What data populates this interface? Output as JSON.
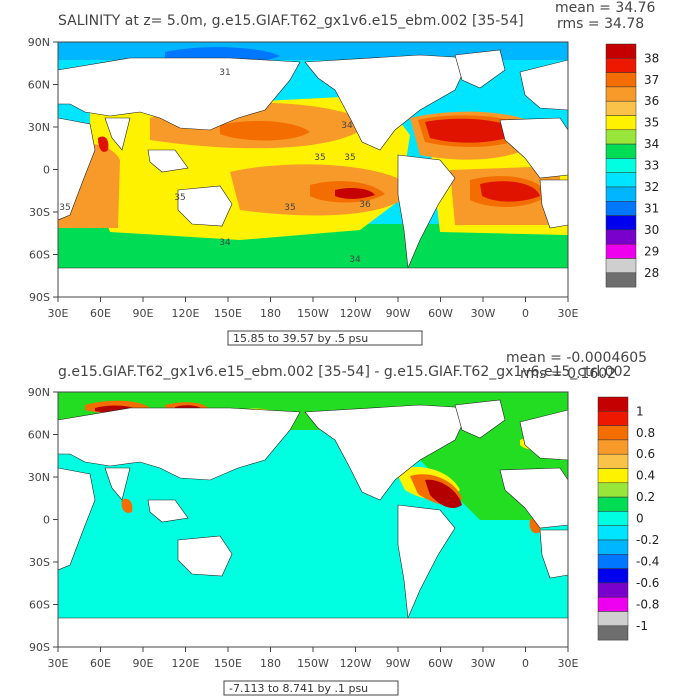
{
  "chart_data": [
    {
      "type": "heatmap",
      "title": "SALINITY at z=   5.0m, g.e15.GIAF.T62_gx1v6.e15_ebm.002 [35-54]",
      "stats": {
        "mean": "mean = 34.76",
        "rms": "rms = 34.78"
      },
      "x_ticks": [
        "30E",
        "60E",
        "90E",
        "120E",
        "150E",
        "180",
        "150W",
        "120W",
        "90W",
        "60W",
        "30W",
        "0",
        "30E"
      ],
      "y_ticks": [
        "90N",
        "60N",
        "30N",
        "0",
        "30S",
        "60S",
        "90S"
      ],
      "xlim": [
        30,
        390
      ],
      "ylim": [
        -90,
        90
      ],
      "range_label": "15.85 to 39.57 by .5 psu",
      "contour_labels": [
        "31",
        "34",
        "35",
        "35",
        "35",
        "35",
        "35",
        "36",
        "34",
        "34"
      ],
      "colorbar": {
        "labels": [
          "38",
          "37",
          "36",
          "35",
          "34",
          "33",
          "32",
          "31",
          "30",
          "29",
          "28"
        ],
        "colors": [
          "#c40000",
          "#ee1800",
          "#f46d00",
          "#f79a2a",
          "#fbc24a",
          "#fff200",
          "#99e63a",
          "#00dd55",
          "#00ffe0",
          "#00e5ff",
          "#00b6ff",
          "#0077ff",
          "#0000ee",
          "#7a00cc",
          "#ee00ee",
          "#cfcfcf",
          "#6e6e6e"
        ]
      },
      "field_levels": [
        {
          "range": "< 33",
          "color": "#00e5ff"
        },
        {
          "range": "33-34",
          "color": "#00dd55"
        },
        {
          "range": "34-35",
          "color": "#fff200"
        },
        {
          "range": "35-36",
          "color": "#f79a2a"
        },
        {
          "range": "36-37",
          "color": "#f46d00"
        },
        {
          "range": "> 37",
          "color": "#e01200"
        }
      ]
    },
    {
      "type": "heatmap",
      "title": "g.e15.GIAF.T62_gx1v6.e15_ebm.002 [35-54] - g.e15.GIAF.T62_gx1v6.e15_ctrl.002",
      "stats": {
        "mean": "mean = -0.0004605",
        "rms": "rms = 0.1602"
      },
      "x_ticks": [
        "30E",
        "60E",
        "90E",
        "120E",
        "150E",
        "180",
        "150W",
        "120W",
        "90W",
        "60W",
        "30W",
        "0",
        "30E"
      ],
      "y_ticks": [
        "90N",
        "60N",
        "30N",
        "0",
        "30S",
        "60S",
        "90S"
      ],
      "xlim": [
        30,
        390
      ],
      "ylim": [
        -90,
        90
      ],
      "range_label": "-7.113 to 8.741 by .1 psu",
      "colorbar": {
        "labels": [
          "1",
          "0.8",
          "0.6",
          "0.4",
          "0.2",
          "0",
          "-0.2",
          "-0.4",
          "-0.6",
          "-0.8",
          "-1"
        ],
        "colors": [
          "#c40000",
          "#ee1800",
          "#f46d00",
          "#f79a2a",
          "#fbc24a",
          "#fff200",
          "#99e63a",
          "#00dd55",
          "#00ffe0",
          "#00e5ff",
          "#00b6ff",
          "#0077ff",
          "#0000ee",
          "#7a00cc",
          "#ee00ee",
          "#cfcfcf",
          "#6e6e6e"
        ]
      },
      "field_levels": [
        {
          "range": "-0.2-0",
          "color": "#00ffe0"
        },
        {
          "range": "0-0.2",
          "color": "#22dd22"
        },
        {
          "range": "0.2-0.4",
          "color": "#fff200"
        },
        {
          "range": "> 0.4",
          "color": "#f46d00"
        },
        {
          "range": "> 0.8",
          "color": "#b50000"
        }
      ]
    }
  ]
}
